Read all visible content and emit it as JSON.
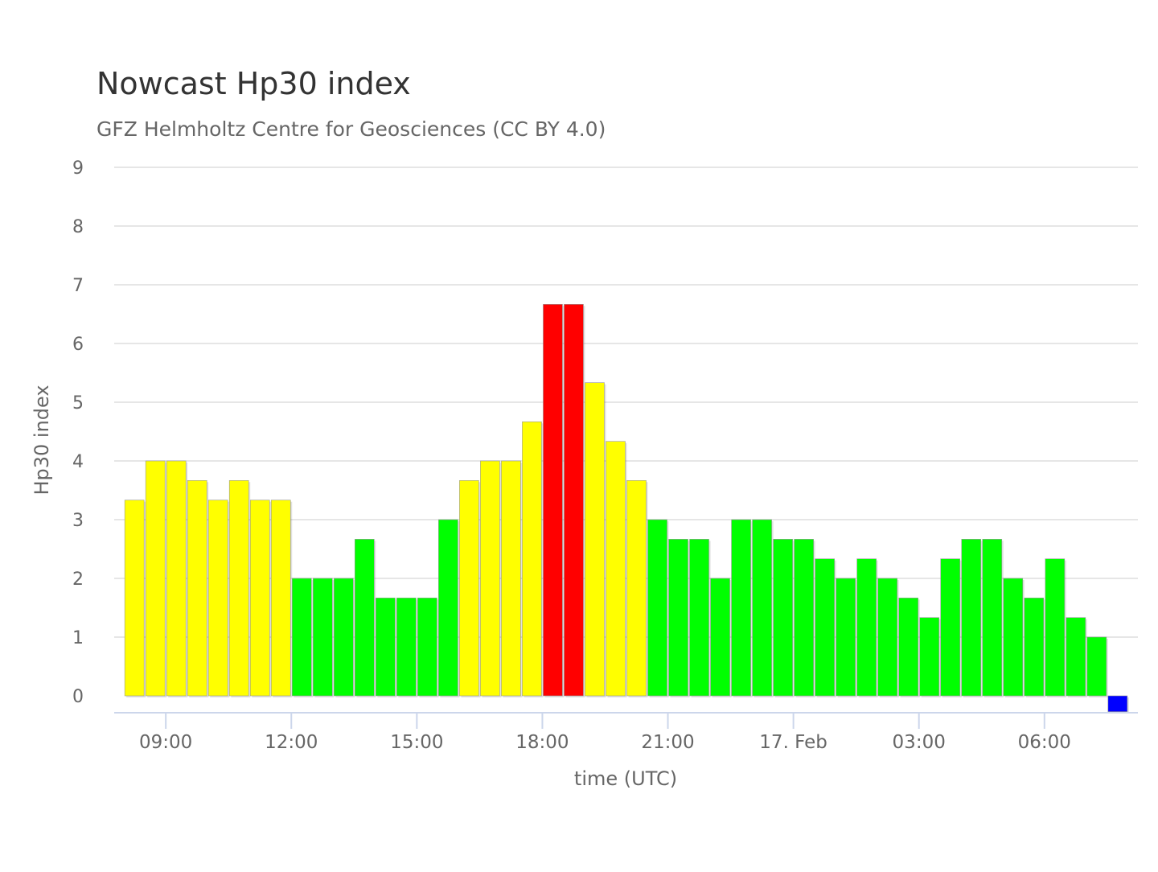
{
  "chart_data": {
    "type": "bar",
    "title": "Nowcast Hp30 index",
    "subtitle": "GFZ Helmholtz Centre for Geosciences (CC BY 4.0)",
    "xlabel": "time (UTC)",
    "ylabel": "Hp30 index",
    "ylim": [
      0,
      9
    ],
    "yticks": [
      "0",
      "1",
      "2",
      "3",
      "4",
      "5",
      "6",
      "7",
      "8",
      "9"
    ],
    "x_start": "16 Feb 08:00 UTC",
    "interval_minutes": 30,
    "xticks": [
      {
        "label": "09:00",
        "minute": 540
      },
      {
        "label": "12:00",
        "minute": 720
      },
      {
        "label": "15:00",
        "minute": 900
      },
      {
        "label": "18:00",
        "minute": 1080
      },
      {
        "label": "21:00",
        "minute": 1260
      },
      {
        "label": "17. Feb",
        "minute": 1440
      },
      {
        "label": "03:00",
        "minute": 1620
      },
      {
        "label": "06:00",
        "minute": 1800
      }
    ],
    "xrange_minutes": [
      466,
      1934
    ],
    "grid": true,
    "legend": "none",
    "colors": {
      "green": "#00ff00",
      "yellow": "#ffff00",
      "red": "#ff0000",
      "blue": "#0000ff"
    },
    "values": [
      3.333,
      4,
      4,
      3.667,
      3.333,
      3.667,
      3.333,
      3.333,
      2,
      2,
      2,
      2.667,
      1.667,
      1.667,
      1.667,
      3,
      3.667,
      4,
      4,
      4.667,
      6.667,
      6.667,
      5.333,
      4.333,
      3.667,
      3,
      2.667,
      2.667,
      2,
      3,
      3,
      2.667,
      2.667,
      2.333,
      2,
      2.333,
      2,
      1.667,
      1.333,
      2.333,
      2.667,
      2.667,
      2,
      1.667,
      2.333,
      1.333,
      1,
      -0.27
    ],
    "bar_colors": [
      "yellow",
      "yellow",
      "yellow",
      "yellow",
      "yellow",
      "yellow",
      "yellow",
      "yellow",
      "green",
      "green",
      "green",
      "green",
      "green",
      "green",
      "green",
      "green",
      "yellow",
      "yellow",
      "yellow",
      "yellow",
      "red",
      "red",
      "yellow",
      "yellow",
      "yellow",
      "green",
      "green",
      "green",
      "green",
      "green",
      "green",
      "green",
      "green",
      "green",
      "green",
      "green",
      "green",
      "green",
      "green",
      "green",
      "green",
      "green",
      "green",
      "green",
      "green",
      "green",
      "green",
      "blue"
    ]
  }
}
